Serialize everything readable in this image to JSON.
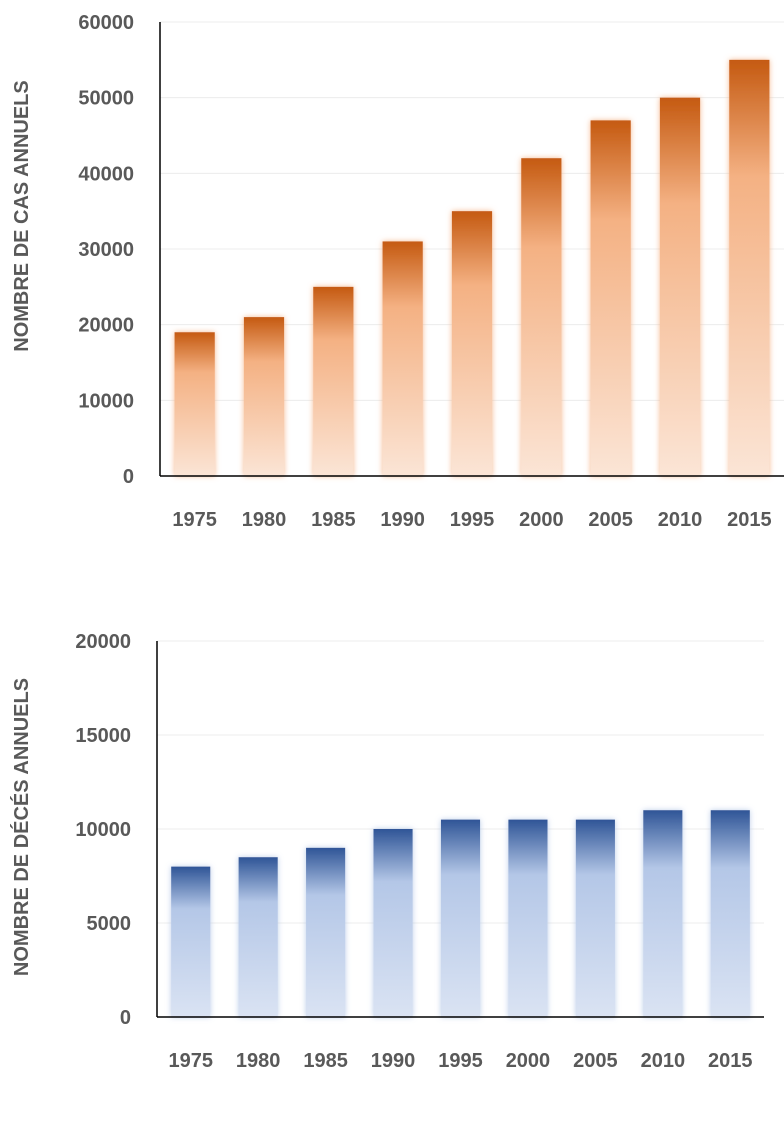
{
  "chart_data": [
    {
      "type": "bar",
      "categories": [
        "1975",
        "1980",
        "1985",
        "1990",
        "1995",
        "2000",
        "2005",
        "2010",
        "2015"
      ],
      "values": [
        19000,
        21000,
        25000,
        31000,
        35000,
        42000,
        47000,
        50000,
        55000
      ],
      "ylabel": "NOMBRE DE CAS ANNUELS",
      "ylim": [
        0,
        60000
      ],
      "yticks": [
        "0",
        "10000",
        "20000",
        "30000",
        "40000",
        "50000",
        "60000"
      ],
      "grid": true,
      "colors": {
        "bar_top": "#c55a11",
        "bar_bottom": "#fbe5d6",
        "glow": "#f4b183"
      }
    },
    {
      "type": "bar",
      "categories": [
        "1975",
        "1980",
        "1985",
        "1990",
        "1995",
        "2000",
        "2005",
        "2010",
        "2015"
      ],
      "values": [
        8000,
        8500,
        9000,
        10000,
        10500,
        10500,
        10500,
        11000,
        11000
      ],
      "ylabel": "NOMBRE DE DÉCÉS ANNUELS",
      "ylim": [
        0,
        20000
      ],
      "yticks": [
        "0",
        "5000",
        "10000",
        "15000",
        "20000"
      ],
      "grid": true,
      "colors": {
        "bar_top": "#2f5597",
        "bar_bottom": "#dae3f3",
        "glow": "#b4c7e7"
      }
    }
  ]
}
